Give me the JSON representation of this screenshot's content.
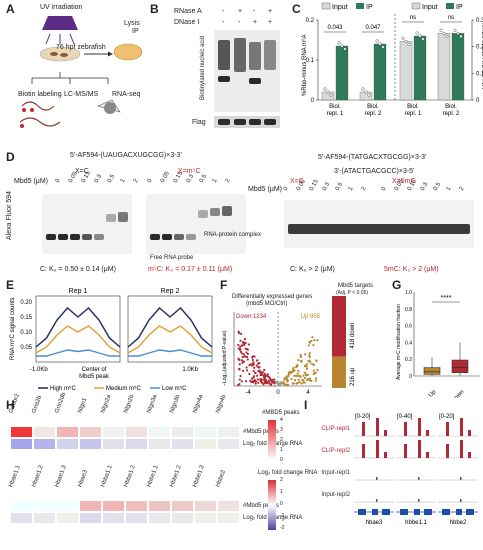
{
  "panels": {
    "A": "A",
    "B": "B",
    "C": "C",
    "D": "D",
    "E": "E",
    "F": "F",
    "G": "G",
    "H": "H",
    "I": "I"
  },
  "A": {
    "uv": "UV irradiation",
    "stage": "76 hpf zebrafish",
    "lysis": "Lysis",
    "ip": "IP",
    "biotin": "Biotin labeling",
    "lcms": "LC-MS/MS",
    "rnaseq": "RNA-seq",
    "polya": "A",
    "colors": {
      "uv": "#5b2b87",
      "fish": "#c8a27c",
      "dish": "#d9a960",
      "rna": "#8a3a2a"
    }
  },
  "B": {
    "row1": "RNase A",
    "row2": "DNase I",
    "signs1": [
      "-",
      "+",
      "-",
      "+"
    ],
    "signs2": [
      "-",
      "-",
      "+",
      "+"
    ],
    "ylabel": "Biotinylated nucleic acid",
    "flag": "Flag"
  },
  "C": {
    "legend": [
      "Input",
      "IP"
    ],
    "pvals": [
      "0.043",
      "0.047",
      "ns",
      "ns"
    ],
    "ylabel_left": "%Rbo-minus RNA m⁶A",
    "ylabel_right": "%Rbo-minus RNA m⁶A/A",
    "yticks_left": [
      "0",
      "0.1",
      "0.2"
    ],
    "yticks_right": [
      "0",
      "0.1",
      "0.2",
      "0.3"
    ],
    "xlabels": [
      "Biol. repl. 1",
      "Biol. repl. 2",
      "Biol. repl. 1",
      "Biol. repl. 2"
    ],
    "colors": {
      "input": "#d9d9d9",
      "ip": "#2f7a5a"
    }
  },
  "chart_data": [
    {
      "type": "bar",
      "categories": [
        "Biol. repl. 1",
        "Biol. repl. 2"
      ],
      "series": [
        {
          "name": "Input",
          "values": [
            0.02,
            0.02
          ]
        },
        {
          "name": "IP",
          "values": [
            0.135,
            0.14
          ]
        }
      ],
      "ylabel": "%Rbo-minus RNA m⁶A",
      "ylim": [
        0,
        0.2
      ]
    },
    {
      "type": "bar",
      "categories": [
        "Biol. repl. 1",
        "Biol. repl. 2"
      ],
      "series": [
        {
          "name": "Input",
          "values": [
            0.22,
            0.25
          ]
        },
        {
          "name": "IP",
          "values": [
            0.24,
            0.25
          ]
        }
      ],
      "ylabel": "%Rbo-minus RNA m⁶A/A",
      "ylim": [
        0,
        0.3
      ]
    },
    {
      "type": "line",
      "title": "Rep 1",
      "x": [
        -1.0,
        -0.75,
        -0.5,
        -0.25,
        0,
        0.25,
        0.5,
        0.75,
        1.0
      ],
      "series": [
        {
          "name": "High m⁵C",
          "values": [
            0.05,
            0.08,
            0.14,
            0.18,
            0.15,
            0.18,
            0.14,
            0.08,
            0.05
          ]
        },
        {
          "name": "Medium m⁵C",
          "values": [
            0.03,
            0.05,
            0.09,
            0.12,
            0.1,
            0.12,
            0.09,
            0.05,
            0.03
          ]
        },
        {
          "name": "Low m⁵C",
          "values": [
            0.02,
            0.02,
            0.03,
            0.04,
            0.035,
            0.04,
            0.03,
            0.02,
            0.02
          ]
        }
      ],
      "ylabel": "RNA m⁵C signal counts",
      "ylim": [
        0,
        0.2
      ]
    },
    {
      "type": "line",
      "title": "Rep 2",
      "x": [
        -1.0,
        -0.75,
        -0.5,
        -0.25,
        0,
        0.25,
        0.5,
        0.75,
        1.0
      ],
      "series": [
        {
          "name": "High m⁵C",
          "values": [
            0.05,
            0.08,
            0.14,
            0.18,
            0.15,
            0.18,
            0.14,
            0.08,
            0.05
          ]
        },
        {
          "name": "Medium m⁵C",
          "values": [
            0.03,
            0.05,
            0.09,
            0.12,
            0.1,
            0.12,
            0.09,
            0.05,
            0.03
          ]
        },
        {
          "name": "Low m⁵C",
          "values": [
            0.02,
            0.02,
            0.03,
            0.04,
            0.035,
            0.04,
            0.03,
            0.02,
            0.02
          ]
        }
      ],
      "ylim": [
        0,
        0.2
      ]
    },
    {
      "type": "bar",
      "title": "Mbd5 targets (Adj. P < 0.05)",
      "categories": [
        "418 down",
        "216 up"
      ],
      "values": [
        418,
        216
      ]
    }
  ],
  "D": {
    "seq_left": "5'-AF594-(UAUGACXUGCGG)×3-3'",
    "xc": "X=C",
    "xm": "X=m⁵C",
    "mbd": "Mbd5 (μM)",
    "conc": [
      "0",
      "0.05",
      "0.15",
      "0.3",
      "0.5",
      "1",
      "2"
    ],
    "ylabel": "Alexa Fluor 594",
    "free": "Free RNA probe",
    "complex": "RNA-protein complex",
    "kd_c": "C: K₀ = 0.50 ± 0.14 (μM)",
    "kd_m": "m⁵C: K₀ = 0.17 ± 0.11 (μM)",
    "seq_r1": "5'-AF594-(TATGACXTGCGG)×3-3'",
    "seq_r2": "3'-(ATACTGACGCC)×3-5'",
    "xc2": "X=C",
    "xm2": "X=5mC",
    "kd_c2": "C: K₀ > 2 (μM)",
    "kd_m2": "5mC: K₀ > 2 (μM)"
  },
  "E": {
    "rep1": "Rep 1",
    "rep2": "Rep 2",
    "yticks": [
      "0.20",
      "0.15",
      "0.10",
      "0.05"
    ],
    "x_left": "-1.0Kb",
    "x_center": "Center of Mbd5 peak",
    "x_right": "1.0Kb",
    "legend": [
      "High m⁵C",
      "Medium m⁵C",
      "Low m⁵C"
    ],
    "colors": {
      "high": "#1f2b5a",
      "medium": "#e0a030",
      "low": "#4a8fd0"
    }
  },
  "F": {
    "title1": "Differentially expressed genes",
    "title2": "(mbd5 MO/Ctrl)",
    "down": "Down:1234",
    "up": "Up:955",
    "ylabel": "−Log₁₀(adjusted P-value)",
    "xlabel": "Log₂ fold change",
    "xticks": [
      "-4",
      "0",
      "4"
    ],
    "targets": "Mbd5 targets",
    "targets_sub": "(Adj. P < 0.05)",
    "down418": "418 down",
    "up216": "216 up",
    "colors": {
      "down": "#b02a36",
      "up": "#b8862f"
    }
  },
  "G": {
    "ylabel": "Average m⁵C modification fraction",
    "sig": "****",
    "xlabels": [
      "Up",
      "Down"
    ],
    "yticks": [
      "0",
      "0.2",
      "0.4",
      "0.6",
      "0.8",
      "1.0"
    ],
    "colors": {
      "up": "#b8862f",
      "down": "#b02a36"
    }
  },
  "H": {
    "genes1": [
      "Gabbr2",
      "Gria2b",
      "Grin2db",
      "Nlgn1",
      "Nlgn2a",
      "Nlgn2b",
      "Nlgn3a",
      "Nlgn3b",
      "Nlgn4a",
      "Nlgn4b"
    ],
    "genes2": [
      "Hbae1.1",
      "Hbae1.2",
      "Hbae1.3",
      "Hbae3",
      "Hbba1.1",
      "Hbba1.2",
      "Hbbe1.1",
      "Hbbe1.2",
      "Hbbe1.3",
      "Hbbe2"
    ],
    "row_peaks": "#Mbd5 peaks",
    "row_fc": "Log₂ fold change RNA",
    "leg1": "#MBD5 peaks",
    "leg1_ticks": [
      "4",
      "3",
      "2",
      "1",
      "0"
    ],
    "leg2": "Log₂ fold change RNA",
    "leg2_ticks": [
      "2",
      "1",
      "0",
      "-1",
      "-2"
    ]
  },
  "I": {
    "ranges": [
      "[0-20]",
      "[0-40]",
      "[0-20]"
    ],
    "tracks": [
      "CLIP-repl1",
      "CLIP-repl2",
      "Input-repl1",
      "Input-repl2"
    ],
    "genes": [
      "hbae3",
      "hbbe1.1",
      "hbbe2"
    ],
    "colors": {
      "clip": "#b02a36",
      "input": "#555555",
      "gene": "#1e4fa8"
    }
  }
}
